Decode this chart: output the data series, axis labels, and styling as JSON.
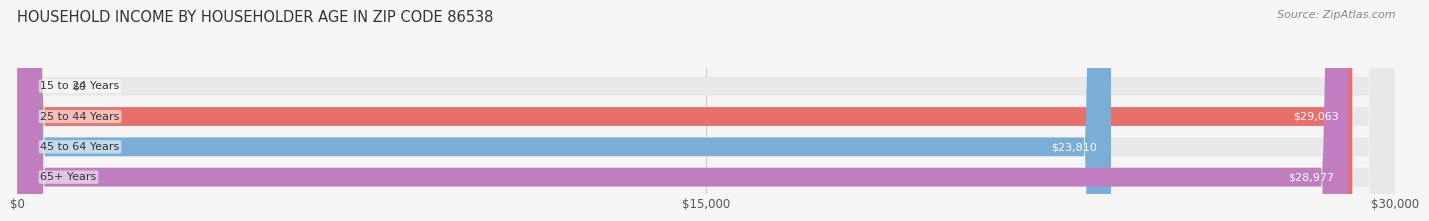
{
  "title": "HOUSEHOLD INCOME BY HOUSEHOLDER AGE IN ZIP CODE 86538",
  "source": "Source: ZipAtlas.com",
  "categories": [
    "15 to 24 Years",
    "25 to 44 Years",
    "45 to 64 Years",
    "65+ Years"
  ],
  "values": [
    0,
    29063,
    23810,
    28977
  ],
  "bar_colors": [
    "#f0c898",
    "#e8706a",
    "#7aaed6",
    "#c07ec0"
  ],
  "value_labels": [
    "$0",
    "$29,063",
    "$23,810",
    "$28,977"
  ],
  "xlim": [
    0,
    30000
  ],
  "xticks": [
    0,
    15000,
    30000
  ],
  "xticklabels": [
    "$0",
    "$15,000",
    "$30,000"
  ],
  "background_color": "#f5f5f5",
  "bar_background": "#e8e8e8",
  "title_fontsize": 10.5,
  "source_fontsize": 8
}
